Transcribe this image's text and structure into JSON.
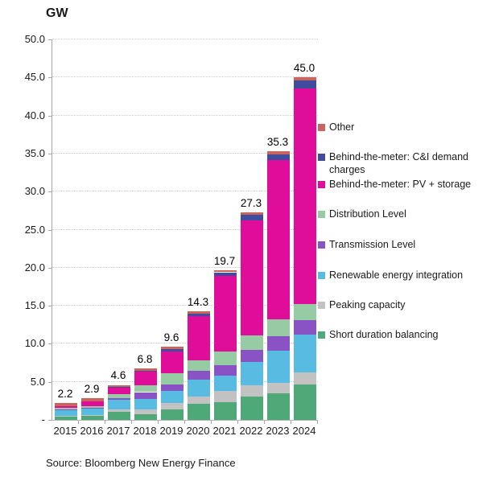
{
  "unit_label": "GW",
  "source": "Source: Bloomberg New Energy Finance",
  "chart_data": {
    "type": "bar",
    "stacked": true,
    "title": "GW",
    "xlabel": "",
    "ylabel": "GW",
    "ylim": [
      0,
      50
    ],
    "ytick_step": 5,
    "ytick_labels": [
      "-",
      "5.0",
      "10.0",
      "15.0",
      "20.0",
      "25.0",
      "30.0",
      "35.0",
      "40.0",
      "45.0",
      "50.0"
    ],
    "grid": "horizontal-dotted",
    "legend_position": "right",
    "categories": [
      "2015",
      "2016",
      "2017",
      "2018",
      "2019",
      "2020",
      "2021",
      "2022",
      "2023",
      "2024"
    ],
    "totals": [
      2.2,
      2.9,
      4.6,
      6.8,
      9.6,
      14.3,
      19.7,
      27.3,
      35.3,
      45.0
    ],
    "total_labels": [
      "2.2",
      "2.9",
      "4.6",
      "6.8",
      "9.6",
      "14.3",
      "19.7",
      "27.3",
      "35.3",
      "45.0"
    ],
    "series": [
      {
        "name": "Short duration balancing",
        "color": "#4FA878",
        "values": [
          0.45,
          0.55,
          1.1,
          0.75,
          1.4,
          2.1,
          2.3,
          3.1,
          3.5,
          4.7
        ]
      },
      {
        "name": "Peaking capacity",
        "color": "#C2C2C2",
        "values": [
          0.1,
          0.1,
          0.3,
          0.6,
          0.8,
          1.0,
          1.5,
          1.4,
          1.4,
          1.5
        ]
      },
      {
        "name": "Renewable energy integration",
        "color": "#58BBE2",
        "values": [
          0.8,
          0.9,
          1.2,
          1.4,
          1.6,
          2.2,
          2.0,
          3.1,
          4.2,
          5.0
        ]
      },
      {
        "name": "Transmission Level",
        "color": "#8952C5",
        "values": [
          0.05,
          0.05,
          0.3,
          0.9,
          0.9,
          1.2,
          1.4,
          1.6,
          1.9,
          1.9
        ]
      },
      {
        "name": "Distribution Level",
        "color": "#96CBA4",
        "values": [
          0.2,
          0.25,
          0.5,
          0.9,
          1.4,
          1.3,
          1.8,
          1.9,
          2.2,
          2.1
        ]
      },
      {
        "name": "Behind-the-meter: PV + storage",
        "color": "#E00D9A",
        "values": [
          0.2,
          0.55,
          0.85,
          1.9,
          2.9,
          5.8,
          9.9,
          15.1,
          20.9,
          28.4
        ]
      },
      {
        "name": "Behind-the-meter: C&I demand charges",
        "color": "#414C9F",
        "values": [
          0.0,
          0.0,
          0.05,
          0.05,
          0.3,
          0.4,
          0.5,
          0.8,
          0.8,
          1.0
        ]
      },
      {
        "name": "Other",
        "color": "#C9655C",
        "values": [
          0.4,
          0.5,
          0.3,
          0.3,
          0.3,
          0.3,
          0.3,
          0.3,
          0.4,
          0.4
        ]
      }
    ],
    "legend_order_top_to_bottom": [
      "Other",
      "Behind-the-meter: C&I demand charges",
      "Behind-the-meter: PV + storage",
      "Distribution Level",
      "Transmission Level",
      "Renewable energy integration",
      "Peaking capacity",
      "Short duration balancing"
    ]
  }
}
